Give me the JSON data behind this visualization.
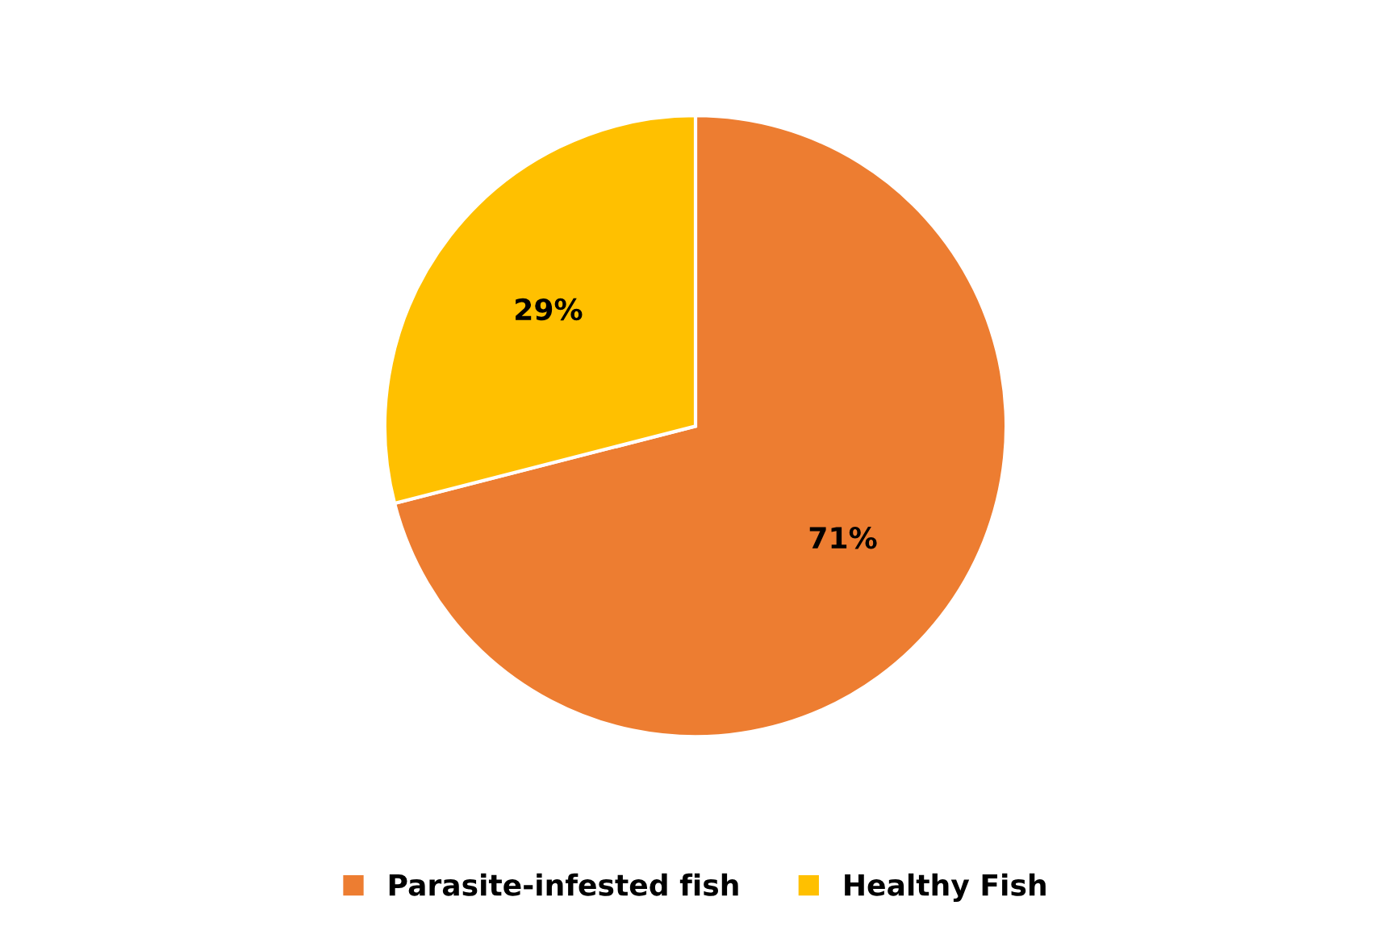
{
  "chart_data": {
    "type": "pie",
    "categories": [
      "Parasite-infested fish",
      "Healthy Fish"
    ],
    "values": [
      71,
      29
    ],
    "colors": [
      "#ed7d31",
      "#ffc000"
    ],
    "value_labels": [
      "71%",
      "29%"
    ],
    "legend": "bottom"
  }
}
